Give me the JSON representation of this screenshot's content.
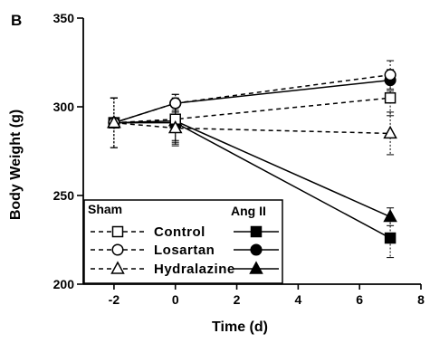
{
  "panel_label": "B",
  "chart_data": {
    "type": "line",
    "xlabel": "Time (d)",
    "ylabel": "Body Weight (g)",
    "xlim": [
      -3,
      8
    ],
    "ylim": [
      200,
      350
    ],
    "xticks": [
      -2,
      0,
      2,
      4,
      6,
      8
    ],
    "yticks": [
      200,
      250,
      300,
      350
    ],
    "x": [
      -2,
      0,
      7
    ],
    "grid": false,
    "legend_placement": "bottom-left",
    "legend_group_titles": {
      "sham": "Sham",
      "ang": "Ang II"
    },
    "groups": [
      {
        "label": "Control",
        "marker": "square"
      },
      {
        "label": "Losartan",
        "marker": "circle"
      },
      {
        "label": "Hydralazine",
        "marker": "triangle"
      }
    ],
    "series": [
      {
        "group": "sham",
        "label": "Control",
        "marker": "square",
        "filled": false,
        "line": "dashed",
        "values": [
          291,
          293,
          305
        ],
        "error": [
          14,
          12,
          10
        ]
      },
      {
        "group": "sham",
        "label": "Losartan",
        "marker": "circle",
        "filled": false,
        "line": "dashed",
        "values": [
          291,
          302,
          318
        ],
        "error": [
          14,
          5,
          8
        ]
      },
      {
        "group": "sham",
        "label": "Hydralazine",
        "marker": "triangle",
        "filled": false,
        "line": "dashed",
        "values": [
          291,
          288,
          285
        ],
        "error": [
          14,
          10,
          12
        ]
      },
      {
        "group": "ang",
        "label": "Control",
        "marker": "square",
        "filled": true,
        "line": "solid",
        "values": [
          291,
          291,
          226
        ],
        "error": [
          14,
          12,
          11
        ]
      },
      {
        "group": "ang",
        "label": "Losartan",
        "marker": "circle",
        "filled": true,
        "line": "solid",
        "values": [
          291,
          302,
          315
        ],
        "error": [
          14,
          5,
          6
        ]
      },
      {
        "group": "ang",
        "label": "Hydralazine",
        "marker": "triangle",
        "filled": true,
        "line": "solid",
        "values": [
          291,
          292,
          238
        ],
        "error": [
          14,
          12,
          5
        ]
      }
    ]
  }
}
